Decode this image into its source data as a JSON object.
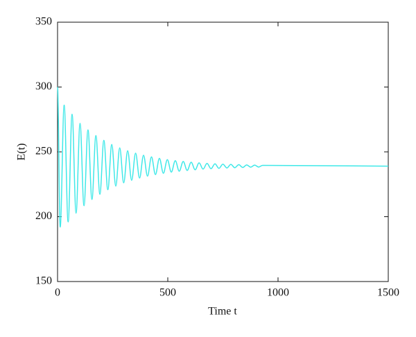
{
  "chart_data": {
    "type": "line",
    "xlabel": "Time t",
    "ylabel": "E(t)",
    "xlim": [
      0,
      1500
    ],
    "ylim": [
      150,
      350
    ],
    "xticks": [
      0,
      500,
      1000,
      1500
    ],
    "yticks": [
      150,
      200,
      250,
      300,
      350
    ],
    "series": [
      {
        "name": "E(t)",
        "color": "#3ee8e8",
        "x": [
          0,
          12,
          30,
          48,
          66,
          84,
          102,
          120,
          138,
          156,
          174,
          192,
          210,
          228,
          246,
          264,
          282,
          300,
          318,
          336,
          354,
          372,
          390,
          408,
          426,
          444,
          462,
          480,
          498,
          516,
          534,
          552,
          570,
          588,
          606,
          624,
          642,
          660,
          678,
          696,
          714,
          732,
          750,
          768,
          786,
          804,
          822,
          840,
          858,
          876,
          894,
          912,
          930,
          1500
        ],
        "values": [
          300,
          192,
          286,
          196,
          279,
          202.7,
          272,
          208.4,
          267,
          213.3,
          262.6,
          217.3,
          258.9,
          220.8,
          255.7,
          223.6,
          253.1,
          226.1,
          250.9,
          228.1,
          249,
          229.8,
          247.4,
          231.3,
          246.1,
          232.5,
          245,
          233.5,
          244,
          234.4,
          243.2,
          235.1,
          242.6,
          235.7,
          242,
          236.2,
          241.5,
          236.7,
          241.1,
          237,
          240.8,
          237.3,
          240.5,
          237.6,
          240.3,
          237.8,
          240.1,
          238,
          239.9,
          238.2,
          239.8,
          238.3,
          239.6,
          239
        ]
      }
    ]
  }
}
